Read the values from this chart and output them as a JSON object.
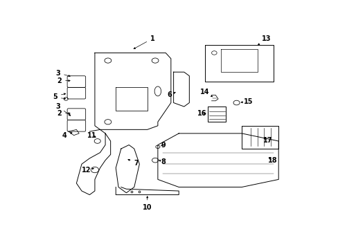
{
  "background_color": "#ffffff",
  "line_color": "#000000",
  "text_color": "#000000",
  "figure_width": 4.89,
  "figure_height": 3.6,
  "dpi": 100
}
